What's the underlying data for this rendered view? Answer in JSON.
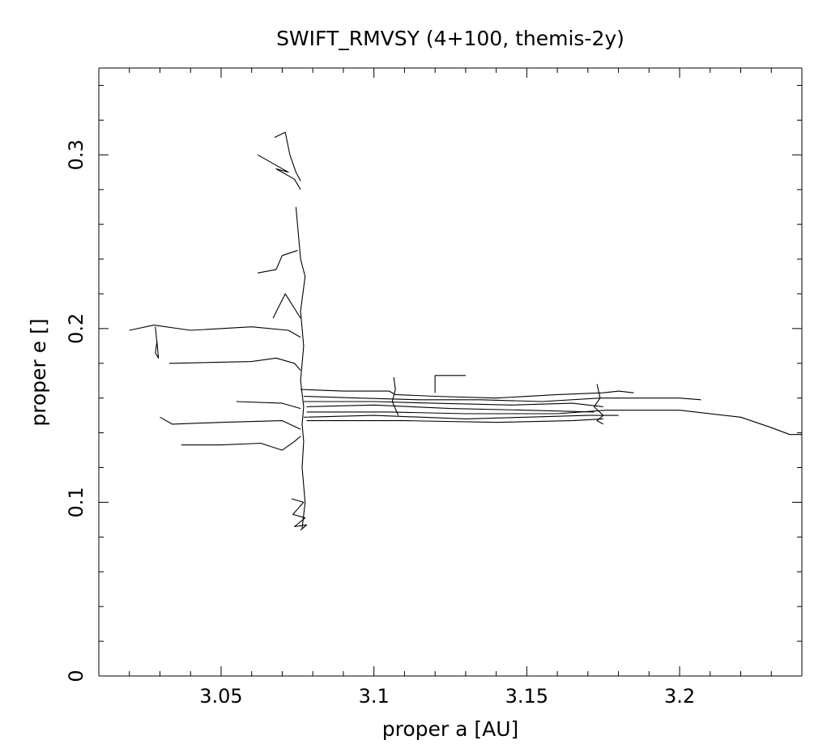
{
  "chart_data": {
    "type": "line",
    "title": "SWIFT_RMVSY (4+100, themis-2y)",
    "xlabel": "proper a [AU]",
    "ylabel": "proper e []",
    "xlim": [
      3.01,
      3.24
    ],
    "ylim": [
      0,
      0.35
    ],
    "x_ticks": [
      "3.05",
      "3.1",
      "3.15",
      "3.2"
    ],
    "y_ticks": [
      "0",
      "0.1",
      "0.2",
      "0.3"
    ],
    "grid": false,
    "legend": "none",
    "line_color": "#000000",
    "series": [
      {
        "x": [
          3.02,
          3.028,
          3.04,
          3.06,
          3.072,
          3.076
        ],
        "y": [
          0.199,
          0.202,
          0.199,
          0.201,
          0.199,
          0.195
        ]
      },
      {
        "x": [
          3.0285,
          3.029,
          3.0285,
          3.0295,
          3.029
        ],
        "y": [
          0.201,
          0.192,
          0.186,
          0.183,
          0.193
        ]
      },
      {
        "x": [
          3.033,
          3.06,
          3.068,
          3.074,
          3.076
        ],
        "y": [
          0.18,
          0.181,
          0.183,
          0.18,
          0.176
        ]
      },
      {
        "x": [
          3.03,
          3.034,
          3.05,
          3.07,
          3.076
        ],
        "y": [
          0.149,
          0.145,
          0.146,
          0.147,
          0.142
        ]
      },
      {
        "x": [
          3.037,
          3.05,
          3.063,
          3.07,
          3.074,
          3.076
        ],
        "y": [
          0.133,
          0.133,
          0.134,
          0.13,
          0.135,
          0.138
        ]
      },
      {
        "x": [
          3.055,
          3.07,
          3.076
        ],
        "y": [
          0.158,
          0.157,
          0.154
        ]
      },
      {
        "x": [
          3.062,
          3.068,
          3.07,
          3.075
        ],
        "y": [
          0.232,
          0.234,
          0.242,
          0.245
        ]
      },
      {
        "x": [
          3.067,
          3.071,
          3.076
        ],
        "y": [
          0.206,
          0.22,
          0.206
        ]
      },
      {
        "x": [
          3.062,
          3.072,
          3.068,
          3.074,
          3.076
        ],
        "y": [
          0.3,
          0.29,
          0.292,
          0.286,
          0.28
        ]
      },
      {
        "x": [
          3.0675,
          3.071,
          3.0725,
          3.0745,
          3.076
        ],
        "y": [
          0.31,
          0.313,
          0.3,
          0.29,
          0.285
        ]
      },
      {
        "x": [
          3.0745,
          3.076,
          3.0775,
          3.076,
          3.077,
          3.076,
          3.077,
          3.0765,
          3.077,
          3.0765,
          3.0775,
          3.0765
        ],
        "y": [
          0.27,
          0.24,
          0.23,
          0.21,
          0.19,
          0.17,
          0.155,
          0.145,
          0.135,
          0.12,
          0.1,
          0.085
        ]
      },
      {
        "x": [
          3.073,
          3.077,
          3.0735,
          3.0775,
          3.074,
          3.078,
          3.076
        ],
        "y": [
          0.102,
          0.1,
          0.093,
          0.091,
          0.086,
          0.087,
          0.084
        ]
      },
      {
        "x": [
          3.076,
          3.09,
          3.105,
          3.107,
          3.12,
          3.14,
          3.16,
          3.175,
          3.18,
          3.185
        ],
        "y": [
          0.165,
          0.164,
          0.164,
          0.162,
          0.161,
          0.16,
          0.162,
          0.163,
          0.164,
          0.163
        ]
      },
      {
        "x": [
          3.077,
          3.095,
          3.115,
          3.135,
          3.155,
          3.174,
          3.2,
          3.207
        ],
        "y": [
          0.161,
          0.16,
          0.159,
          0.159,
          0.158,
          0.16,
          0.16,
          0.159
        ]
      },
      {
        "x": [
          3.077,
          3.1,
          3.12,
          3.145,
          3.165,
          3.175
        ],
        "y": [
          0.158,
          0.158,
          0.157,
          0.156,
          0.157,
          0.155
        ]
      },
      {
        "x": [
          3.078,
          3.1,
          3.125,
          3.15,
          3.172
        ],
        "y": [
          0.155,
          0.156,
          0.154,
          0.153,
          0.152
        ]
      },
      {
        "x": [
          3.078,
          3.105,
          3.13,
          3.16,
          3.176,
          3.2,
          3.22,
          3.23,
          3.236,
          3.24
        ],
        "y": [
          0.152,
          0.152,
          0.151,
          0.151,
          0.153,
          0.153,
          0.149,
          0.143,
          0.139,
          0.139
        ]
      },
      {
        "x": [
          3.077,
          3.1,
          3.13,
          3.15,
          3.17,
          3.18
        ],
        "y": [
          0.149,
          0.15,
          0.148,
          0.149,
          0.15,
          0.15
        ]
      },
      {
        "x": [
          3.078,
          3.11,
          3.14,
          3.165,
          3.175
        ],
        "y": [
          0.147,
          0.147,
          0.146,
          0.147,
          0.148
        ]
      },
      {
        "x": [
          3.1065,
          3.107,
          3.106,
          3.108
        ],
        "y": [
          0.172,
          0.165,
          0.158,
          0.15
        ]
      },
      {
        "x": [
          3.12,
          3.12,
          3.13
        ],
        "y": [
          0.163,
          0.173,
          0.173
        ]
      },
      {
        "x": [
          3.173,
          3.174,
          3.172,
          3.175,
          3.173,
          3.175
        ],
        "y": [
          0.168,
          0.16,
          0.155,
          0.15,
          0.147,
          0.145
        ]
      }
    ]
  }
}
